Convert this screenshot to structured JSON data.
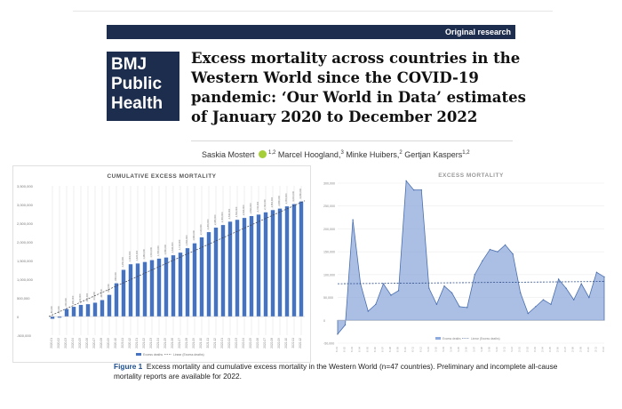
{
  "header": {
    "banner_label": "Original research",
    "logo": [
      "BMJ",
      "Public",
      "Health"
    ],
    "title": "Excess mortality across countries in the Western World since the COVID-19 pandemic: ‘Our World in Data’ estimates of January 2020 to December 2022",
    "authors": [
      {
        "name": "Saskia Mostert",
        "sup": "1,2",
        "orcid": true
      },
      {
        "name": "Marcel Hoogland,",
        "sup": "3"
      },
      {
        "name": "Minke Huibers,",
        "sup": "2"
      },
      {
        "name": "Gertjan Kaspers",
        "sup": "1,2"
      }
    ]
  },
  "figure": {
    "caption_label": "Figure 1",
    "caption_text": "Excess mortality and cumulative excess mortality in the Western World (n=47 countries). Preliminary and incomplete all-cause mortality reports are available for 2022."
  },
  "chart_data": [
    {
      "type": "bar",
      "title": "CUMULATIVE EXCESS MORTALITY",
      "yticks": [
        "3,500,000",
        "3,000,000",
        "2,500,000",
        "2,000,000",
        "1,500,000",
        "1,000,000",
        "500,000",
        "0",
        "-500,000"
      ],
      "ylim": [
        -500000,
        3500000
      ],
      "categories": [
        "2020-01",
        "2020-02",
        "2020-03",
        "2020-04",
        "2020-05",
        "2020-06",
        "2020-07",
        "2020-08",
        "2020-09",
        "2020-10",
        "2020-11",
        "2020-12",
        "2021-01",
        "2021-02",
        "2021-03",
        "2021-04",
        "2021-05",
        "2021-06",
        "2021-07",
        "2021-08",
        "2021-09",
        "2021-10",
        "2021-11",
        "2021-12",
        "2022-01",
        "2022-02",
        "2022-03",
        "2022-04",
        "2022-05",
        "2022-06",
        "2022-07",
        "2022-08",
        "2022-09",
        "2022-10",
        "2022-11",
        "2022-12"
      ],
      "values": [
        -60000,
        -30000,
        200000,
        260000,
        310000,
        330000,
        370000,
        440000,
        580000,
        890000,
        1250000,
        1400000,
        1420000,
        1460000,
        1510000,
        1550000,
        1580000,
        1640000,
        1710000,
        1830000,
        1960000,
        2120000,
        2260000,
        2380000,
        2450000,
        2540000,
        2590000,
        2640000,
        2690000,
        2730000,
        2790000,
        2850000,
        2890000,
        2950000,
        3010000,
        3080000
      ],
      "trendline": [
        0,
        3100000
      ],
      "legend": [
        "Excess deaths",
        "Linear (Excess deaths)"
      ]
    },
    {
      "type": "area",
      "title": "EXCESS MORTALITY",
      "yticks": [
        "300,000",
        "250,000",
        "200,000",
        "150,000",
        "100,000",
        "50,000",
        "0",
        "-50,000"
      ],
      "ylim": [
        -50000,
        300000
      ],
      "x": [
        "2020-01",
        "2020-02",
        "2020-03",
        "2020-04",
        "2020-05",
        "2020-06",
        "2020-07",
        "2020-08",
        "2020-09",
        "2020-10",
        "2020-11",
        "2020-12",
        "2021-01",
        "2021-02",
        "2021-03",
        "2021-04",
        "2021-05",
        "2021-06",
        "2021-07",
        "2021-08",
        "2021-09",
        "2021-10",
        "2021-11",
        "2021-12",
        "2022-01",
        "2022-02",
        "2022-03",
        "2022-04",
        "2022-05",
        "2022-06",
        "2022-07",
        "2022-08",
        "2022-09",
        "2022-10",
        "2022-11",
        "2022-12"
      ],
      "values": [
        -30000,
        -10000,
        220000,
        80000,
        20000,
        35000,
        80000,
        55000,
        65000,
        305000,
        285000,
        285000,
        70000,
        35000,
        75000,
        60000,
        30000,
        28000,
        100000,
        130000,
        155000,
        150000,
        165000,
        145000,
        60000,
        15000,
        30000,
        45000,
        35000,
        90000,
        70000,
        45000,
        80000,
        50000,
        105000,
        95000
      ],
      "trendline": [
        80000,
        85000
      ],
      "legend": [
        "Excess deaths",
        "Linear (Excess deaths)"
      ]
    }
  ],
  "colors": {
    "navy": "#1d2d4d",
    "bar": "#4472c4",
    "area": "#8faadc",
    "area_line": "#4a6fae",
    "orcid": "#a6ce39",
    "caption_label": "#1d4f91"
  }
}
